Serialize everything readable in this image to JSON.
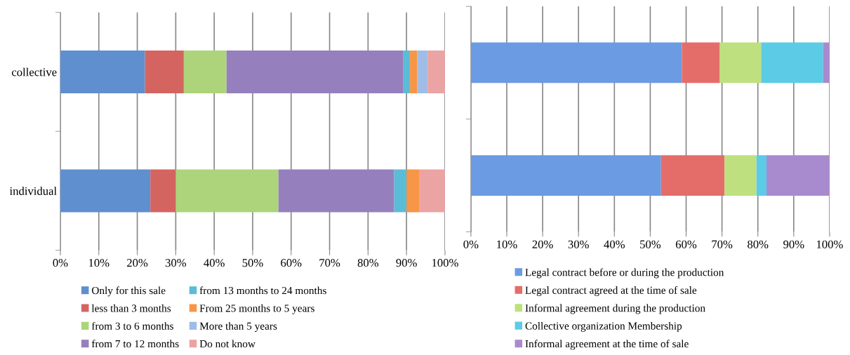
{
  "chart_data": [
    {
      "type": "bar",
      "orientation": "horizontal",
      "stacked": true,
      "categories": [
        "collective",
        "individual"
      ],
      "xlim": [
        0,
        100
      ],
      "xticks": [
        {
          "value": 0,
          "label": "0%"
        },
        {
          "value": 10,
          "label": "10%"
        },
        {
          "value": 20,
          "label": "20%"
        },
        {
          "value": 30,
          "label": "30%"
        },
        {
          "value": 40,
          "label": "40%"
        },
        {
          "value": 50,
          "label": "50%"
        },
        {
          "value": 60,
          "label": "60%"
        },
        {
          "value": 70,
          "label": "70%"
        },
        {
          "value": 80,
          "label": "80%"
        },
        {
          "value": 90,
          "label": "90%"
        },
        {
          "value": 100,
          "label": "100%"
        }
      ],
      "grid": "x",
      "legend": "bottom",
      "series": [
        {
          "name": "Only for this sale",
          "color": "#5f8fcf",
          "values": [
            22.0,
            23.4
          ]
        },
        {
          "name": "less than 3 months",
          "color": "#d46460",
          "values": [
            10.1,
            6.6
          ]
        },
        {
          "name": "from 3 to 6 months",
          "color": "#add47a",
          "values": [
            11.1,
            26.7
          ]
        },
        {
          "name": "from 7 to 12 months",
          "color": "#9580bd",
          "values": [
            46.0,
            30.1
          ]
        },
        {
          "name": "from 13 months to 24 months",
          "color": "#5bbcd8",
          "values": [
            1.7,
            3.2
          ]
        },
        {
          "name": "From 25 months to 5 years",
          "color": "#f79646",
          "values": [
            1.9,
            3.4
          ]
        },
        {
          "name": "More than 5 years",
          "color": "#9fbde6",
          "values": [
            2.7,
            0
          ]
        },
        {
          "name": "Do not know",
          "color": "#eba3a3",
          "values": [
            4.5,
            6.6
          ]
        }
      ]
    },
    {
      "type": "bar",
      "orientation": "horizontal",
      "stacked": true,
      "categories": [
        null,
        null
      ],
      "tick_labels": "x",
      "xlim": [
        0,
        100
      ],
      "xticks": [
        {
          "value": 0,
          "label": "0%"
        },
        {
          "value": 10,
          "label": "10%"
        },
        {
          "value": 20,
          "label": "20%"
        },
        {
          "value": 30,
          "label": "30%"
        },
        {
          "value": 40,
          "label": "40%"
        },
        {
          "value": 50,
          "label": "50%"
        },
        {
          "value": 60,
          "label": "60%"
        },
        {
          "value": 70,
          "label": "70%"
        },
        {
          "value": 80,
          "label": "80%"
        },
        {
          "value": 90,
          "label": "90%"
        },
        {
          "value": 100,
          "label": "100%"
        }
      ],
      "grid": "x",
      "legend": "bottom",
      "series": [
        {
          "name": "Legal contract before or during the production",
          "color": "#6a9be3",
          "values": [
            58.8,
            53.0
          ]
        },
        {
          "name": "Legal contract agreed at the time of sale",
          "color": "#e46d6a",
          "values": [
            10.6,
            17.7
          ]
        },
        {
          "name": "Informal agreement during the production",
          "color": "#bfe07e",
          "values": [
            11.5,
            8.9
          ]
        },
        {
          "name": "Collective organization Membership",
          "color": "#5ccbe6",
          "values": [
            17.3,
            2.8
          ]
        },
        {
          "name": "Informal agreement at the time of sale",
          "color": "#a88bcf",
          "values": [
            1.8,
            17.6
          ]
        }
      ]
    }
  ]
}
